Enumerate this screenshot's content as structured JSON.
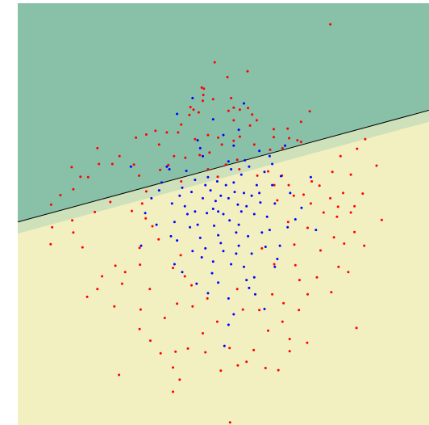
{
  "chart_data": {
    "type": "scatter",
    "title": "",
    "xlabel": "",
    "ylabel": "",
    "xlim": [
      -4,
      4
    ],
    "ylim": [
      -4,
      4
    ],
    "grid": false,
    "legend": "none",
    "colors": {
      "region_upper": "#88c0a8",
      "region_lower": "#f2f0c0",
      "boundary": "#000000",
      "class_outer": "#ff0000",
      "class_inner": "#0000ff"
    },
    "decision_boundary": {
      "slope": 0.265,
      "intercept": 0.91
    },
    "series": [
      {
        "class": "outer",
        "color": "#ff0000",
        "points": [
          [
            2.08,
            3.6
          ],
          [
            -0.42,
            2.4
          ],
          [
            -0.38,
            2.38
          ],
          [
            -0.39,
            2.26
          ],
          [
            -0.4,
            2.15
          ],
          [
            -0.64,
            2.03
          ],
          [
            -0.58,
            1.98
          ],
          [
            -0.48,
            1.93
          ],
          [
            -0.2,
            2.18
          ],
          [
            0.08,
            2.6
          ],
          [
            0.15,
            2.2
          ],
          [
            0.2,
            2.02
          ],
          [
            0.1,
            1.96
          ],
          [
            0.32,
            1.98
          ],
          [
            0.48,
            2.01
          ],
          [
            0.56,
            1.89
          ],
          [
            1.68,
            1.95
          ],
          [
            1.51,
            1.75
          ],
          [
            0.2,
            1.78
          ],
          [
            0.52,
            1.68
          ],
          [
            0.65,
            1.78
          ],
          [
            0.98,
            1.46
          ],
          [
            0.98,
            1.61
          ],
          [
            1.25,
            1.62
          ],
          [
            1.28,
            1.44
          ],
          [
            1.44,
            1.4
          ],
          [
            1.51,
            1.37
          ],
          [
            1.15,
            1.25
          ],
          [
            0.91,
            1.22
          ],
          [
            0.6,
            1.32
          ],
          [
            0.32,
            1.47
          ],
          [
            0.2,
            1.39
          ],
          [
            -0.1,
            1.45
          ],
          [
            -0.3,
            1.5
          ],
          [
            -0.55,
            1.42
          ],
          [
            -0.88,
            1.55
          ],
          [
            -1.32,
            1.58
          ],
          [
            -1.5,
            1.51
          ],
          [
            -1.7,
            1.45
          ],
          [
            -1.25,
            1.32
          ],
          [
            -0.96,
            1.1
          ],
          [
            -0.74,
            1.07
          ],
          [
            -0.46,
            1.12
          ],
          [
            -0.27,
            1.17
          ],
          [
            -0.03,
            1.32
          ],
          [
            -1.07,
            0.93
          ],
          [
            -1.23,
            0.84
          ],
          [
            -0.82,
            0.62
          ],
          [
            -0.3,
            0.85
          ],
          [
            0.05,
            0.94
          ],
          [
            0.31,
            0.85
          ],
          [
            0.66,
            0.73
          ],
          [
            0.87,
            0.81
          ],
          [
            0.99,
            0.55
          ],
          [
            1.14,
            0.73
          ],
          [
            1.27,
            0.55
          ],
          [
            1.37,
            0.35
          ],
          [
            1.56,
            0.37
          ],
          [
            1.7,
            0.2
          ],
          [
            1.95,
            0.03
          ],
          [
            2.21,
            -0.05
          ],
          [
            2.48,
            0.03
          ],
          [
            2.23,
            0.14
          ],
          [
            2.08,
            0.3
          ],
          [
            1.87,
            0.54
          ],
          [
            1.72,
            0.62
          ],
          [
            -1.64,
            0.73
          ],
          [
            -1.74,
            0.94
          ],
          [
            -2.02,
            1.1
          ],
          [
            -2.16,
            0.95
          ],
          [
            -2.42,
            0.95
          ],
          [
            -2.63,
            0.7
          ],
          [
            -2.78,
            0.71
          ],
          [
            -2.92,
            0.47
          ],
          [
            -3.17,
            0.36
          ],
          [
            -3.35,
            0.18
          ],
          [
            -1.5,
            0.43
          ],
          [
            -1.58,
            0.2
          ],
          [
            -1.78,
            0.06
          ],
          [
            -1.51,
            -0.08
          ],
          [
            -1.38,
            -0.23
          ],
          [
            -1.26,
            -0.48
          ],
          [
            -1.63,
            -0.64
          ],
          [
            -1.62,
            -0.96
          ],
          [
            -1.91,
            -1.1
          ],
          [
            -2.1,
            -0.98
          ],
          [
            -2.36,
            -1.18
          ],
          [
            -2.74,
            -0.63
          ],
          [
            -2.92,
            -0.35
          ],
          [
            -2.94,
            -0.12
          ],
          [
            -3.36,
            -0.57
          ],
          [
            -3.33,
            -0.25
          ],
          [
            -0.83,
            -0.78
          ],
          [
            -0.98,
            -1.02
          ],
          [
            -0.75,
            -1.18
          ],
          [
            -0.62,
            -1.35
          ],
          [
            -0.9,
            -1.7
          ],
          [
            -1.14,
            -1.97
          ],
          [
            -1.43,
            -1.42
          ],
          [
            -1.61,
            -1.81
          ],
          [
            -1.63,
            -2.18
          ],
          [
            -1.42,
            -2.4
          ],
          [
            -1.22,
            -2.64
          ],
          [
            -2.12,
            -1.75
          ],
          [
            -2.45,
            -1.42
          ],
          [
            -1.97,
            -1.32
          ],
          [
            -0.4,
            -2.26
          ],
          [
            -0.12,
            -2.04
          ],
          [
            0.38,
            -1.81
          ],
          [
            0.7,
            -1.82
          ],
          [
            0.95,
            -1.52
          ],
          [
            1.17,
            -1.69
          ],
          [
            1.47,
            -1.82
          ],
          [
            1.64,
            -1.52
          ],
          [
            1.82,
            -1.2
          ],
          [
            2.1,
            -1.48
          ],
          [
            2.24,
            -1.0
          ],
          [
            2.43,
            -1.1
          ],
          [
            1.15,
            -2.04
          ],
          [
            0.87,
            -2.21
          ],
          [
            1.29,
            -2.37
          ],
          [
            1.63,
            -2.44
          ],
          [
            0.59,
            -2.58
          ],
          [
            0.45,
            -2.8
          ],
          [
            0.28,
            -2.87
          ],
          [
            -0.05,
            -2.97
          ],
          [
            -0.35,
            -2.62
          ],
          [
            -0.69,
            -2.55
          ],
          [
            -0.93,
            -2.61
          ],
          [
            -0.98,
            -2.91
          ],
          [
            -0.85,
            -3.14
          ],
          [
            -0.98,
            -3.37
          ],
          [
            0.12,
            -2.54
          ],
          [
            0.82,
            -2.92
          ],
          [
            1.07,
            -2.96
          ],
          [
            1.29,
            -2.6
          ],
          [
            -2.03,
            -3.05
          ],
          [
            0.13,
            -3.95
          ],
          [
            1.4,
            -0.97
          ],
          [
            1.38,
            -0.58
          ],
          [
            1.26,
            -0.15
          ],
          [
            1.64,
            -0.26
          ],
          [
            1.89,
            -0.69
          ],
          [
            2.15,
            -0.44
          ],
          [
            2.35,
            -0.56
          ],
          [
            2.55,
            -0.34
          ],
          [
            2.74,
            -0.6
          ],
          [
            2.55,
            0.15
          ],
          [
            2.33,
            0.4
          ],
          [
            2.48,
            0.75
          ],
          [
            2.71,
            0.39
          ],
          [
            3.08,
            -0.11
          ],
          [
            2.98,
            0.92
          ],
          [
            2.28,
            1.1
          ],
          [
            2.6,
            1.24
          ],
          [
            2.76,
            1.42
          ],
          [
            2.12,
            0.8
          ],
          [
            -2.2,
            0.23
          ],
          [
            -2.5,
            0.04
          ],
          [
            -1.1,
            1.55
          ],
          [
            -0.82,
            1.7
          ],
          [
            -0.66,
            1.88
          ],
          [
            -0.11,
            0.71
          ],
          [
            0.27,
            1.03
          ],
          [
            1.05,
            0.26
          ],
          [
            -2.45,
            1.25
          ],
          [
            -2.95,
            0.89
          ],
          [
            0.99,
            -0.95
          ],
          [
            0.75,
            -0.65
          ],
          [
            -0.31,
            -1.6
          ],
          [
            1.48,
            -1.25
          ],
          [
            -0.6,
            -1.75
          ],
          [
            0.27,
            -1.42
          ],
          [
            2.59,
            -2.16
          ],
          [
            -2.65,
            -1.57
          ],
          [
            -0.17,
            2.88
          ],
          [
            0.47,
            2.71
          ]
        ]
      },
      {
        "class": "inner",
        "color": "#0000ff",
        "points": [
          [
            0.0,
            0.0
          ],
          [
            0.1,
            0.3
          ],
          [
            -0.2,
            0.1
          ],
          [
            0.3,
            -0.2
          ],
          [
            -0.1,
            -0.4
          ],
          [
            0.4,
            0.4
          ],
          [
            -0.4,
            0.3
          ],
          [
            0.2,
            0.6
          ],
          [
            -0.5,
            -0.2
          ],
          [
            0.6,
            0.0
          ],
          [
            0.0,
            -0.7
          ],
          [
            -0.3,
            0.7
          ],
          [
            0.7,
            0.4
          ],
          [
            -0.7,
            0.0
          ],
          [
            0.3,
            -0.6
          ],
          [
            -0.2,
            -0.9
          ],
          [
            0.5,
            0.9
          ],
          [
            -0.8,
            0.5
          ],
          [
            0.9,
            -0.3
          ],
          [
            -0.6,
            -0.7
          ],
          [
            0.1,
            1.0
          ],
          [
            1.0,
            0.2
          ],
          [
            -1.0,
            0.2
          ],
          [
            0.4,
            -1.0
          ],
          [
            -0.4,
            1.1
          ],
          [
            0.8,
            0.8
          ],
          [
            -0.9,
            -0.5
          ],
          [
            0.2,
            1.3
          ],
          [
            1.1,
            -0.6
          ],
          [
            -1.2,
            0.6
          ],
          [
            0.6,
            -1.2
          ],
          [
            -0.1,
            -1.3
          ],
          [
            0.05,
            0.55
          ],
          [
            -0.25,
            0.45
          ],
          [
            0.45,
            0.15
          ],
          [
            -0.45,
            -0.45
          ],
          [
            0.25,
            -0.35
          ],
          [
            -0.15,
            0.25
          ],
          [
            0.35,
            0.75
          ],
          [
            -0.55,
            0.65
          ],
          [
            0.65,
            0.55
          ],
          [
            -0.65,
            -0.25
          ],
          [
            0.15,
            -0.95
          ],
          [
            0.85,
            -0.05
          ],
          [
            -0.85,
            0.35
          ],
          [
            0.55,
            -0.75
          ],
          [
            -0.35,
            -0.65
          ],
          [
            0.95,
            0.55
          ],
          [
            -0.95,
            -0.15
          ],
          [
            0.0,
            1.5
          ],
          [
            0.3,
            1.6
          ],
          [
            -0.5,
            1.4
          ],
          [
            0.7,
            1.2
          ],
          [
            1.3,
            0.4
          ],
          [
            1.4,
            -0.1
          ],
          [
            -1.3,
            -0.2
          ],
          [
            -1.4,
            0.3
          ],
          [
            -0.3,
            -1.5
          ],
          [
            0.1,
            -1.6
          ],
          [
            0.5,
            -1.4
          ],
          [
            -0.8,
            -1.1
          ],
          [
            1.0,
            -1.0
          ],
          [
            -1.1,
            0.9
          ],
          [
            0.9,
            1.1
          ],
          [
            -0.2,
            1.8
          ],
          [
            0.2,
            -1.9
          ],
          [
            -0.1,
            0.05
          ],
          [
            0.12,
            -0.12
          ],
          [
            -0.18,
            -0.22
          ],
          [
            0.28,
            0.18
          ],
          [
            -0.32,
            0.02
          ],
          [
            0.22,
            0.42
          ],
          [
            -0.12,
            0.62
          ],
          [
            0.48,
            -0.42
          ],
          [
            -0.42,
            -0.82
          ],
          [
            0.72,
            0.22
          ],
          [
            -0.72,
            0.82
          ],
          [
            0.82,
            -0.62
          ],
          [
            -0.62,
            0.42
          ],
          [
            0.42,
            1.02
          ],
          [
            -1.02,
            -0.42
          ],
          [
            1.12,
            0.72
          ],
          [
            -0.22,
            -1.12
          ],
          [
            0.62,
            -1.52
          ],
          [
            -0.52,
            -1.32
          ],
          [
            1.52,
            0.12
          ],
          [
            -1.52,
            0.02
          ],
          [
            0.02,
            -2.5
          ],
          [
            -0.6,
            2.2
          ],
          [
            0.4,
            2.1
          ],
          [
            1.7,
            0.7
          ],
          [
            1.8,
            -0.3
          ],
          [
            -1.8,
            0.9
          ],
          [
            -0.9,
            1.9
          ],
          [
            -1.6,
            -0.6
          ],
          [
            0.1,
            -2.1
          ],
          [
            0.8,
            -1.8
          ],
          [
            1.2,
            1.3
          ],
          [
            -0.05,
            0.35
          ],
          [
            0.35,
            0.05
          ],
          [
            -0.35,
            0.55
          ],
          [
            0.55,
            0.35
          ],
          [
            0.15,
            0.85
          ],
          [
            -0.75,
            0.15
          ],
          [
            0.75,
            -0.35
          ],
          [
            -0.05,
            -0.55
          ],
          [
            0.25,
            -0.75
          ],
          [
            -0.55,
            0.05
          ],
          [
            1.25,
            -0.25
          ],
          [
            -1.25,
            0.45
          ],
          [
            0.45,
            -1.25
          ],
          [
            -0.45,
            1.25
          ],
          [
            1.05,
            -0.85
          ],
          [
            -1.05,
            0.85
          ],
          [
            0.95,
            0.95
          ],
          [
            -0.95,
            -0.95
          ]
        ]
      }
    ]
  }
}
